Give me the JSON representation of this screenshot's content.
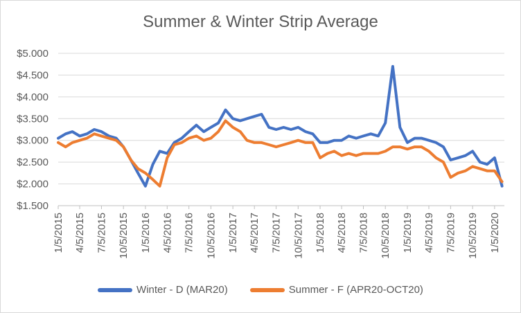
{
  "chart_data": {
    "type": "line",
    "title": "Summer & Winter Strip Average",
    "xlabel": "",
    "ylabel": "",
    "ylim": [
      1.5,
      5.0
    ],
    "y_ticks": [
      "$1.500",
      "$2.000",
      "$2.500",
      "$3.000",
      "$3.500",
      "$4.000",
      "$4.500",
      "$5.000"
    ],
    "x_ticks": [
      "1/5/2015",
      "4/5/2015",
      "7/5/2015",
      "10/5/2015",
      "1/5/2016",
      "4/5/2016",
      "7/5/2016",
      "10/5/2016",
      "1/5/2017",
      "4/5/2017",
      "7/5/2017",
      "10/5/2017",
      "1/5/2018",
      "4/5/2018",
      "7/5/2018",
      "10/5/2018",
      "1/5/2019",
      "4/5/2019",
      "7/5/2019",
      "10/5/2019",
      "1/5/2020"
    ],
    "grid": "horizontal",
    "legend_position": "bottom",
    "series": [
      {
        "name": "Winter - D (MAR20)",
        "color": "#4472C4",
        "x": [
          "1/5/2015",
          "2/5/2015",
          "3/5/2015",
          "4/5/2015",
          "5/5/2015",
          "6/5/2015",
          "7/5/2015",
          "8/5/2015",
          "9/5/2015",
          "10/5/2015",
          "11/5/2015",
          "12/5/2015",
          "1/5/2016",
          "2/5/2016",
          "3/5/2016",
          "4/5/2016",
          "5/5/2016",
          "6/5/2016",
          "7/5/2016",
          "8/5/2016",
          "9/5/2016",
          "10/5/2016",
          "11/5/2016",
          "12/5/2016",
          "1/5/2017",
          "2/5/2017",
          "3/5/2017",
          "4/5/2017",
          "5/5/2017",
          "6/5/2017",
          "7/5/2017",
          "8/5/2017",
          "9/5/2017",
          "10/5/2017",
          "11/5/2017",
          "12/5/2017",
          "1/5/2018",
          "2/5/2018",
          "3/5/2018",
          "4/5/2018",
          "5/5/2018",
          "6/5/2018",
          "7/5/2018",
          "8/5/2018",
          "9/5/2018",
          "10/5/2018",
          "11/5/2018",
          "12/5/2018",
          "1/5/2019",
          "2/5/2019",
          "3/5/2019",
          "4/5/2019",
          "5/5/2019",
          "6/5/2019",
          "7/5/2019",
          "8/5/2019",
          "9/5/2019",
          "10/5/2019",
          "11/5/2019",
          "12/5/2019",
          "1/5/2020",
          "2/5/2020"
        ],
        "values": [
          3.05,
          3.15,
          3.2,
          3.1,
          3.15,
          3.25,
          3.2,
          3.1,
          3.05,
          2.85,
          2.55,
          2.25,
          1.95,
          2.45,
          2.75,
          2.7,
          2.95,
          3.05,
          3.2,
          3.35,
          3.2,
          3.3,
          3.4,
          3.7,
          3.5,
          3.45,
          3.5,
          3.55,
          3.6,
          3.3,
          3.25,
          3.3,
          3.25,
          3.3,
          3.2,
          3.15,
          2.95,
          2.95,
          3.0,
          3.0,
          3.1,
          3.05,
          3.1,
          3.15,
          3.1,
          3.4,
          4.7,
          3.3,
          2.95,
          3.05,
          3.05,
          3.0,
          2.95,
          2.85,
          2.55,
          2.6,
          2.65,
          2.75,
          2.5,
          2.45,
          2.6,
          1.95
        ]
      },
      {
        "name": "Summer - F (APR20-OCT20)",
        "color": "#ED7D31",
        "x": [
          "1/5/2015",
          "2/5/2015",
          "3/5/2015",
          "4/5/2015",
          "5/5/2015",
          "6/5/2015",
          "7/5/2015",
          "8/5/2015",
          "9/5/2015",
          "10/5/2015",
          "11/5/2015",
          "12/5/2015",
          "1/5/2016",
          "2/5/2016",
          "3/5/2016",
          "4/5/2016",
          "5/5/2016",
          "6/5/2016",
          "7/5/2016",
          "8/5/2016",
          "9/5/2016",
          "10/5/2016",
          "11/5/2016",
          "12/5/2016",
          "1/5/2017",
          "2/5/2017",
          "3/5/2017",
          "4/5/2017",
          "5/5/2017",
          "6/5/2017",
          "7/5/2017",
          "8/5/2017",
          "9/5/2017",
          "10/5/2017",
          "11/5/2017",
          "12/5/2017",
          "1/5/2018",
          "2/5/2018",
          "3/5/2018",
          "4/5/2018",
          "5/5/2018",
          "6/5/2018",
          "7/5/2018",
          "8/5/2018",
          "9/5/2018",
          "10/5/2018",
          "11/5/2018",
          "12/5/2018",
          "1/5/2019",
          "2/5/2019",
          "3/5/2019",
          "4/5/2019",
          "5/5/2019",
          "6/5/2019",
          "7/5/2019",
          "8/5/2019",
          "9/5/2019",
          "10/5/2019",
          "11/5/2019",
          "12/5/2019",
          "1/5/2020",
          "2/5/2020"
        ],
        "values": [
          2.95,
          2.85,
          2.95,
          3.0,
          3.05,
          3.15,
          3.1,
          3.05,
          3.0,
          2.85,
          2.55,
          2.35,
          2.25,
          2.1,
          1.95,
          2.6,
          2.9,
          2.95,
          3.05,
          3.1,
          3.0,
          3.05,
          3.2,
          3.45,
          3.3,
          3.2,
          3.0,
          2.95,
          2.95,
          2.9,
          2.85,
          2.9,
          2.95,
          3.0,
          2.95,
          2.95,
          2.6,
          2.7,
          2.75,
          2.65,
          2.7,
          2.65,
          2.7,
          2.7,
          2.7,
          2.75,
          2.85,
          2.85,
          2.8,
          2.85,
          2.85,
          2.75,
          2.6,
          2.5,
          2.15,
          2.25,
          2.3,
          2.4,
          2.35,
          2.3,
          2.3,
          2.05
        ]
      }
    ]
  }
}
